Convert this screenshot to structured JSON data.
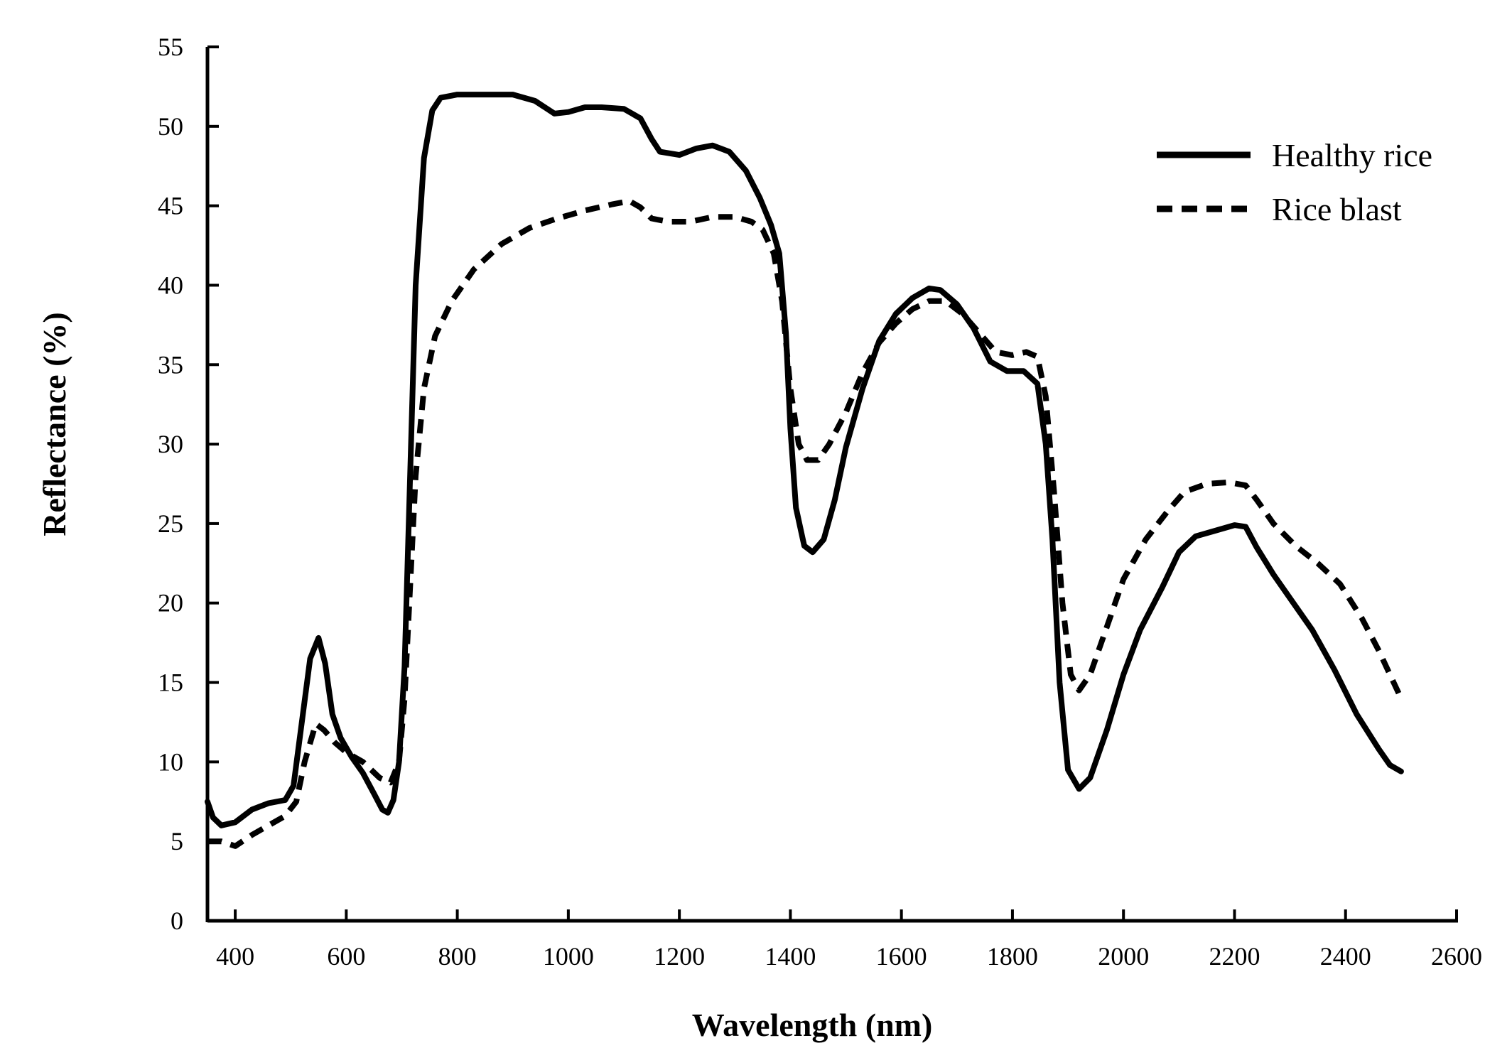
{
  "chart_data": {
    "type": "line",
    "title": "",
    "xlabel": "Wavelength (nm)",
    "ylabel": "Reflectance (%)",
    "xlim": [
      350,
      2600
    ],
    "ylim": [
      0,
      55
    ],
    "xticks": [
      400,
      600,
      800,
      1000,
      1200,
      1400,
      1600,
      1800,
      2000,
      2200,
      2400,
      2600
    ],
    "yticks": [
      0,
      5,
      10,
      15,
      20,
      25,
      30,
      35,
      40,
      45,
      50,
      55
    ],
    "grid": false,
    "legend_position": "top-right",
    "series": [
      {
        "name": "Healthy rice",
        "style": "solid",
        "color": "#000000",
        "points": [
          [
            350,
            7.5
          ],
          [
            360,
            6.5
          ],
          [
            375,
            6.0
          ],
          [
            400,
            6.2
          ],
          [
            430,
            7.0
          ],
          [
            460,
            7.4
          ],
          [
            490,
            7.6
          ],
          [
            505,
            8.5
          ],
          [
            520,
            12.5
          ],
          [
            535,
            16.5
          ],
          [
            550,
            17.8
          ],
          [
            562,
            16.2
          ],
          [
            575,
            13.0
          ],
          [
            590,
            11.5
          ],
          [
            610,
            10.3
          ],
          [
            630,
            9.3
          ],
          [
            650,
            8.0
          ],
          [
            665,
            7.0
          ],
          [
            675,
            6.8
          ],
          [
            685,
            7.6
          ],
          [
            695,
            10.0
          ],
          [
            705,
            16.0
          ],
          [
            715,
            28.0
          ],
          [
            725,
            40.0
          ],
          [
            740,
            48.0
          ],
          [
            755,
            51.0
          ],
          [
            770,
            51.8
          ],
          [
            800,
            52.0
          ],
          [
            850,
            52.0
          ],
          [
            900,
            52.0
          ],
          [
            940,
            51.6
          ],
          [
            975,
            50.8
          ],
          [
            1000,
            50.9
          ],
          [
            1030,
            51.2
          ],
          [
            1060,
            51.2
          ],
          [
            1100,
            51.1
          ],
          [
            1130,
            50.5
          ],
          [
            1150,
            49.2
          ],
          [
            1165,
            48.4
          ],
          [
            1200,
            48.2
          ],
          [
            1230,
            48.6
          ],
          [
            1260,
            48.8
          ],
          [
            1290,
            48.4
          ],
          [
            1320,
            47.2
          ],
          [
            1345,
            45.5
          ],
          [
            1365,
            43.8
          ],
          [
            1380,
            42.0
          ],
          [
            1392,
            37.0
          ],
          [
            1400,
            31.0
          ],
          [
            1410,
            26.0
          ],
          [
            1425,
            23.6
          ],
          [
            1440,
            23.2
          ],
          [
            1460,
            24.0
          ],
          [
            1480,
            26.5
          ],
          [
            1500,
            29.8
          ],
          [
            1530,
            33.5
          ],
          [
            1560,
            36.5
          ],
          [
            1590,
            38.2
          ],
          [
            1620,
            39.2
          ],
          [
            1650,
            39.8
          ],
          [
            1670,
            39.7
          ],
          [
            1700,
            38.8
          ],
          [
            1730,
            37.3
          ],
          [
            1760,
            35.2
          ],
          [
            1790,
            34.6
          ],
          [
            1820,
            34.6
          ],
          [
            1845,
            33.8
          ],
          [
            1860,
            30.0
          ],
          [
            1872,
            24.0
          ],
          [
            1885,
            15.0
          ],
          [
            1900,
            9.5
          ],
          [
            1920,
            8.3
          ],
          [
            1940,
            9.0
          ],
          [
            1970,
            12.0
          ],
          [
            2000,
            15.5
          ],
          [
            2030,
            18.3
          ],
          [
            2070,
            21.0
          ],
          [
            2100,
            23.2
          ],
          [
            2130,
            24.2
          ],
          [
            2160,
            24.5
          ],
          [
            2200,
            24.9
          ],
          [
            2220,
            24.8
          ],
          [
            2240,
            23.5
          ],
          [
            2270,
            21.8
          ],
          [
            2300,
            20.3
          ],
          [
            2340,
            18.3
          ],
          [
            2380,
            15.8
          ],
          [
            2420,
            13.0
          ],
          [
            2460,
            10.8
          ],
          [
            2480,
            9.8
          ],
          [
            2500,
            9.4
          ]
        ]
      },
      {
        "name": "Rice blast",
        "style": "dashed",
        "color": "#000000",
        "points": [
          [
            350,
            5.0
          ],
          [
            375,
            5.0
          ],
          [
            400,
            4.7
          ],
          [
            430,
            5.4
          ],
          [
            460,
            6.0
          ],
          [
            490,
            6.6
          ],
          [
            510,
            7.5
          ],
          [
            525,
            10.0
          ],
          [
            545,
            12.4
          ],
          [
            560,
            12.0
          ],
          [
            580,
            11.2
          ],
          [
            600,
            10.6
          ],
          [
            630,
            10.0
          ],
          [
            660,
            9.0
          ],
          [
            680,
            8.7
          ],
          [
            695,
            10.0
          ],
          [
            705,
            14.0
          ],
          [
            715,
            21.0
          ],
          [
            725,
            28.0
          ],
          [
            740,
            33.5
          ],
          [
            760,
            36.8
          ],
          [
            790,
            39.0
          ],
          [
            830,
            41.0
          ],
          [
            880,
            42.6
          ],
          [
            930,
            43.6
          ],
          [
            980,
            44.2
          ],
          [
            1030,
            44.7
          ],
          [
            1080,
            45.1
          ],
          [
            1110,
            45.3
          ],
          [
            1130,
            44.9
          ],
          [
            1150,
            44.2
          ],
          [
            1180,
            44.0
          ],
          [
            1220,
            44.0
          ],
          [
            1260,
            44.3
          ],
          [
            1300,
            44.3
          ],
          [
            1330,
            44.0
          ],
          [
            1350,
            43.5
          ],
          [
            1370,
            42.0
          ],
          [
            1385,
            39.0
          ],
          [
            1400,
            33.5
          ],
          [
            1415,
            30.0
          ],
          [
            1430,
            29.0
          ],
          [
            1450,
            29.0
          ],
          [
            1470,
            30.0
          ],
          [
            1500,
            32.0
          ],
          [
            1530,
            34.5
          ],
          [
            1560,
            36.4
          ],
          [
            1590,
            37.6
          ],
          [
            1620,
            38.5
          ],
          [
            1650,
            39.0
          ],
          [
            1680,
            39.0
          ],
          [
            1710,
            38.2
          ],
          [
            1740,
            37.0
          ],
          [
            1770,
            35.8
          ],
          [
            1800,
            35.6
          ],
          [
            1825,
            35.8
          ],
          [
            1845,
            35.5
          ],
          [
            1860,
            33.0
          ],
          [
            1875,
            27.0
          ],
          [
            1890,
            20.0
          ],
          [
            1905,
            15.5
          ],
          [
            1920,
            14.5
          ],
          [
            1940,
            15.5
          ],
          [
            1970,
            18.5
          ],
          [
            2000,
            21.5
          ],
          [
            2040,
            24.0
          ],
          [
            2080,
            25.8
          ],
          [
            2110,
            27.0
          ],
          [
            2150,
            27.5
          ],
          [
            2190,
            27.6
          ],
          [
            2220,
            27.4
          ],
          [
            2240,
            26.5
          ],
          [
            2270,
            25.0
          ],
          [
            2310,
            23.6
          ],
          [
            2350,
            22.5
          ],
          [
            2390,
            21.2
          ],
          [
            2430,
            19.0
          ],
          [
            2460,
            17.0
          ],
          [
            2480,
            15.5
          ],
          [
            2500,
            14.0
          ]
        ]
      }
    ]
  }
}
